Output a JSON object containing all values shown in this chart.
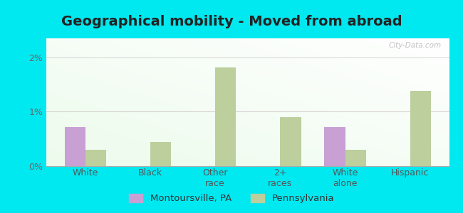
{
  "title": "Geographical mobility - Moved from abroad",
  "categories": [
    "White",
    "Black",
    "Other\nrace",
    "2+\nraces",
    "White\nalone",
    "Hispanic"
  ],
  "montoursville": [
    0.72,
    0.0,
    0.0,
    0.0,
    0.72,
    0.0
  ],
  "pennsylvania": [
    0.3,
    0.44,
    1.82,
    0.9,
    0.3,
    1.38
  ],
  "bar_color_mont": "#c8a0d4",
  "bar_color_penn": "#bccf9c",
  "background_outer": "#00e8f0",
  "ylim": [
    0,
    2.35
  ],
  "yticks": [
    0,
    1,
    2
  ],
  "ytick_labels": [
    "0%",
    "1%",
    "2%"
  ],
  "legend_mont": "Montoursville, PA",
  "legend_penn": "Pennsylvania",
  "title_fontsize": 14,
  "tick_fontsize": 9,
  "legend_fontsize": 9.5,
  "bar_width": 0.32
}
